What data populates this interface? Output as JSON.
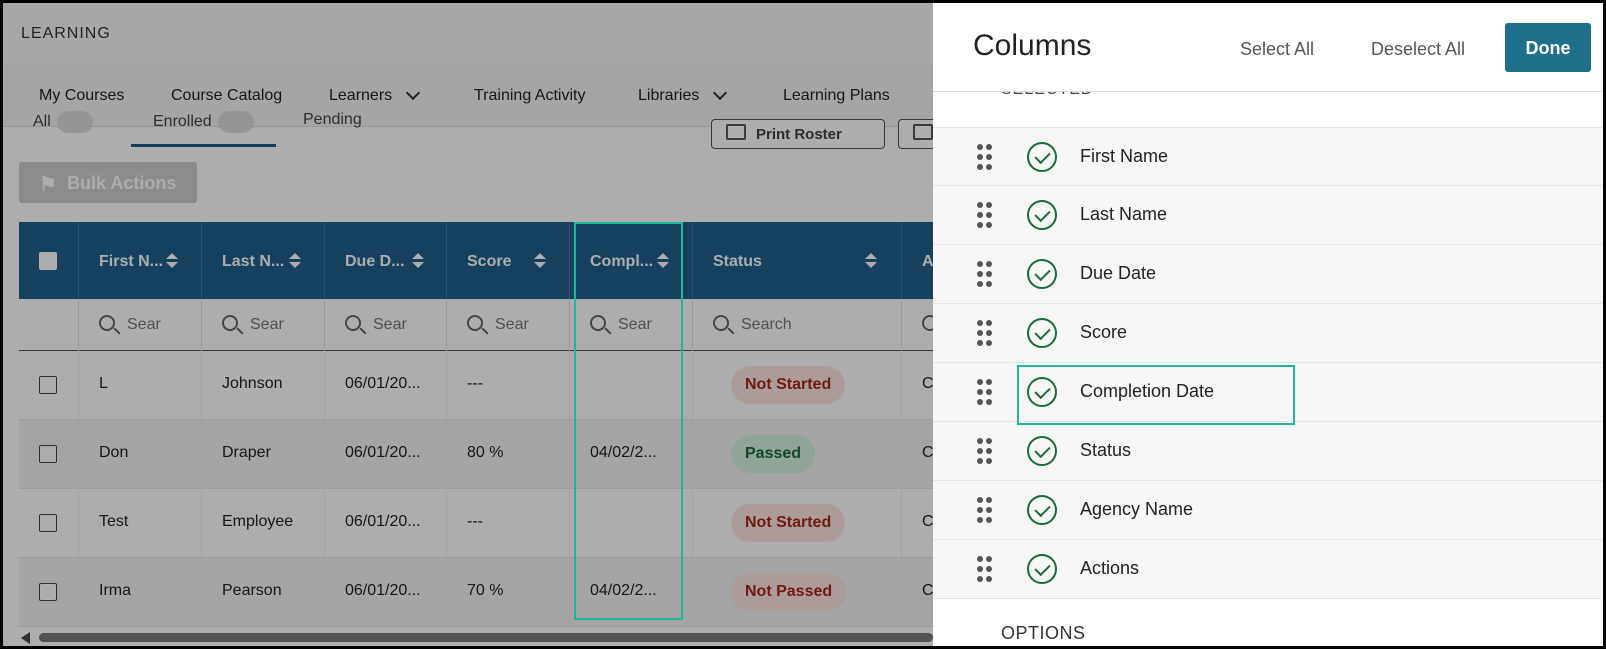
{
  "app": {
    "brand": "LEARNING",
    "nav": [
      {
        "label": "My Courses",
        "dropdown": false
      },
      {
        "label": "Course Catalog",
        "dropdown": false
      },
      {
        "label": "Learners",
        "dropdown": true
      },
      {
        "label": "Training Activity",
        "dropdown": false
      },
      {
        "label": "Libraries",
        "dropdown": true
      },
      {
        "label": "Learning Plans",
        "dropdown": false
      }
    ],
    "subtabs": {
      "all": "All",
      "enrolled": "Enrolled",
      "pending": "Pending"
    },
    "print_roster": "Print Roster",
    "bulk_actions": "Bulk Actions",
    "columns": [
      {
        "label": "First N..."
      },
      {
        "label": "Last N..."
      },
      {
        "label": "Due D..."
      },
      {
        "label": "Score"
      },
      {
        "label": "Compl..."
      },
      {
        "label": "Status"
      },
      {
        "label": "A"
      }
    ],
    "search_placeholders": [
      "Sear",
      "Sear",
      "Sear",
      "Sear",
      "Sear",
      "Search",
      ""
    ],
    "rows": [
      {
        "first": "L",
        "last": "Johnson",
        "due": "06/01/20...",
        "score": "---",
        "completion": "",
        "status": "Not Started",
        "status_tone": "red",
        "agency": "C"
      },
      {
        "first": "Don",
        "last": "Draper",
        "due": "06/01/20...",
        "score": "80 %",
        "completion": "04/02/2...",
        "status": "Passed",
        "status_tone": "green",
        "agency": "C"
      },
      {
        "first": "Test",
        "last": "Employee",
        "due": "06/01/20...",
        "score": "---",
        "completion": "",
        "status": "Not Started",
        "status_tone": "red",
        "agency": "C"
      },
      {
        "first": "Irma",
        "last": "Pearson",
        "due": "06/01/20...",
        "score": "70 %",
        "completion": "04/02/2...",
        "status": "Not Passed",
        "status_tone": "red",
        "agency": "C"
      }
    ]
  },
  "panel": {
    "title": "Columns",
    "select_all": "Select All",
    "deselect_all": "Deselect All",
    "done": "Done",
    "selected_heading": "SELECTED",
    "columns": [
      {
        "label": "First Name",
        "checked": true
      },
      {
        "label": "Last Name",
        "checked": true
      },
      {
        "label": "Due Date",
        "checked": true
      },
      {
        "label": "Score",
        "checked": true
      },
      {
        "label": "Completion Date",
        "checked": true
      },
      {
        "label": "Status",
        "checked": true
      },
      {
        "label": "Agency Name",
        "checked": true
      },
      {
        "label": "Actions",
        "checked": true
      }
    ],
    "options_heading": "OPTIONS"
  },
  "colors": {
    "header_blue": "#1f5f8b",
    "done_teal": "#1f6e8c",
    "highlight": "#21b59a",
    "check_green": "#1a6b3a"
  }
}
